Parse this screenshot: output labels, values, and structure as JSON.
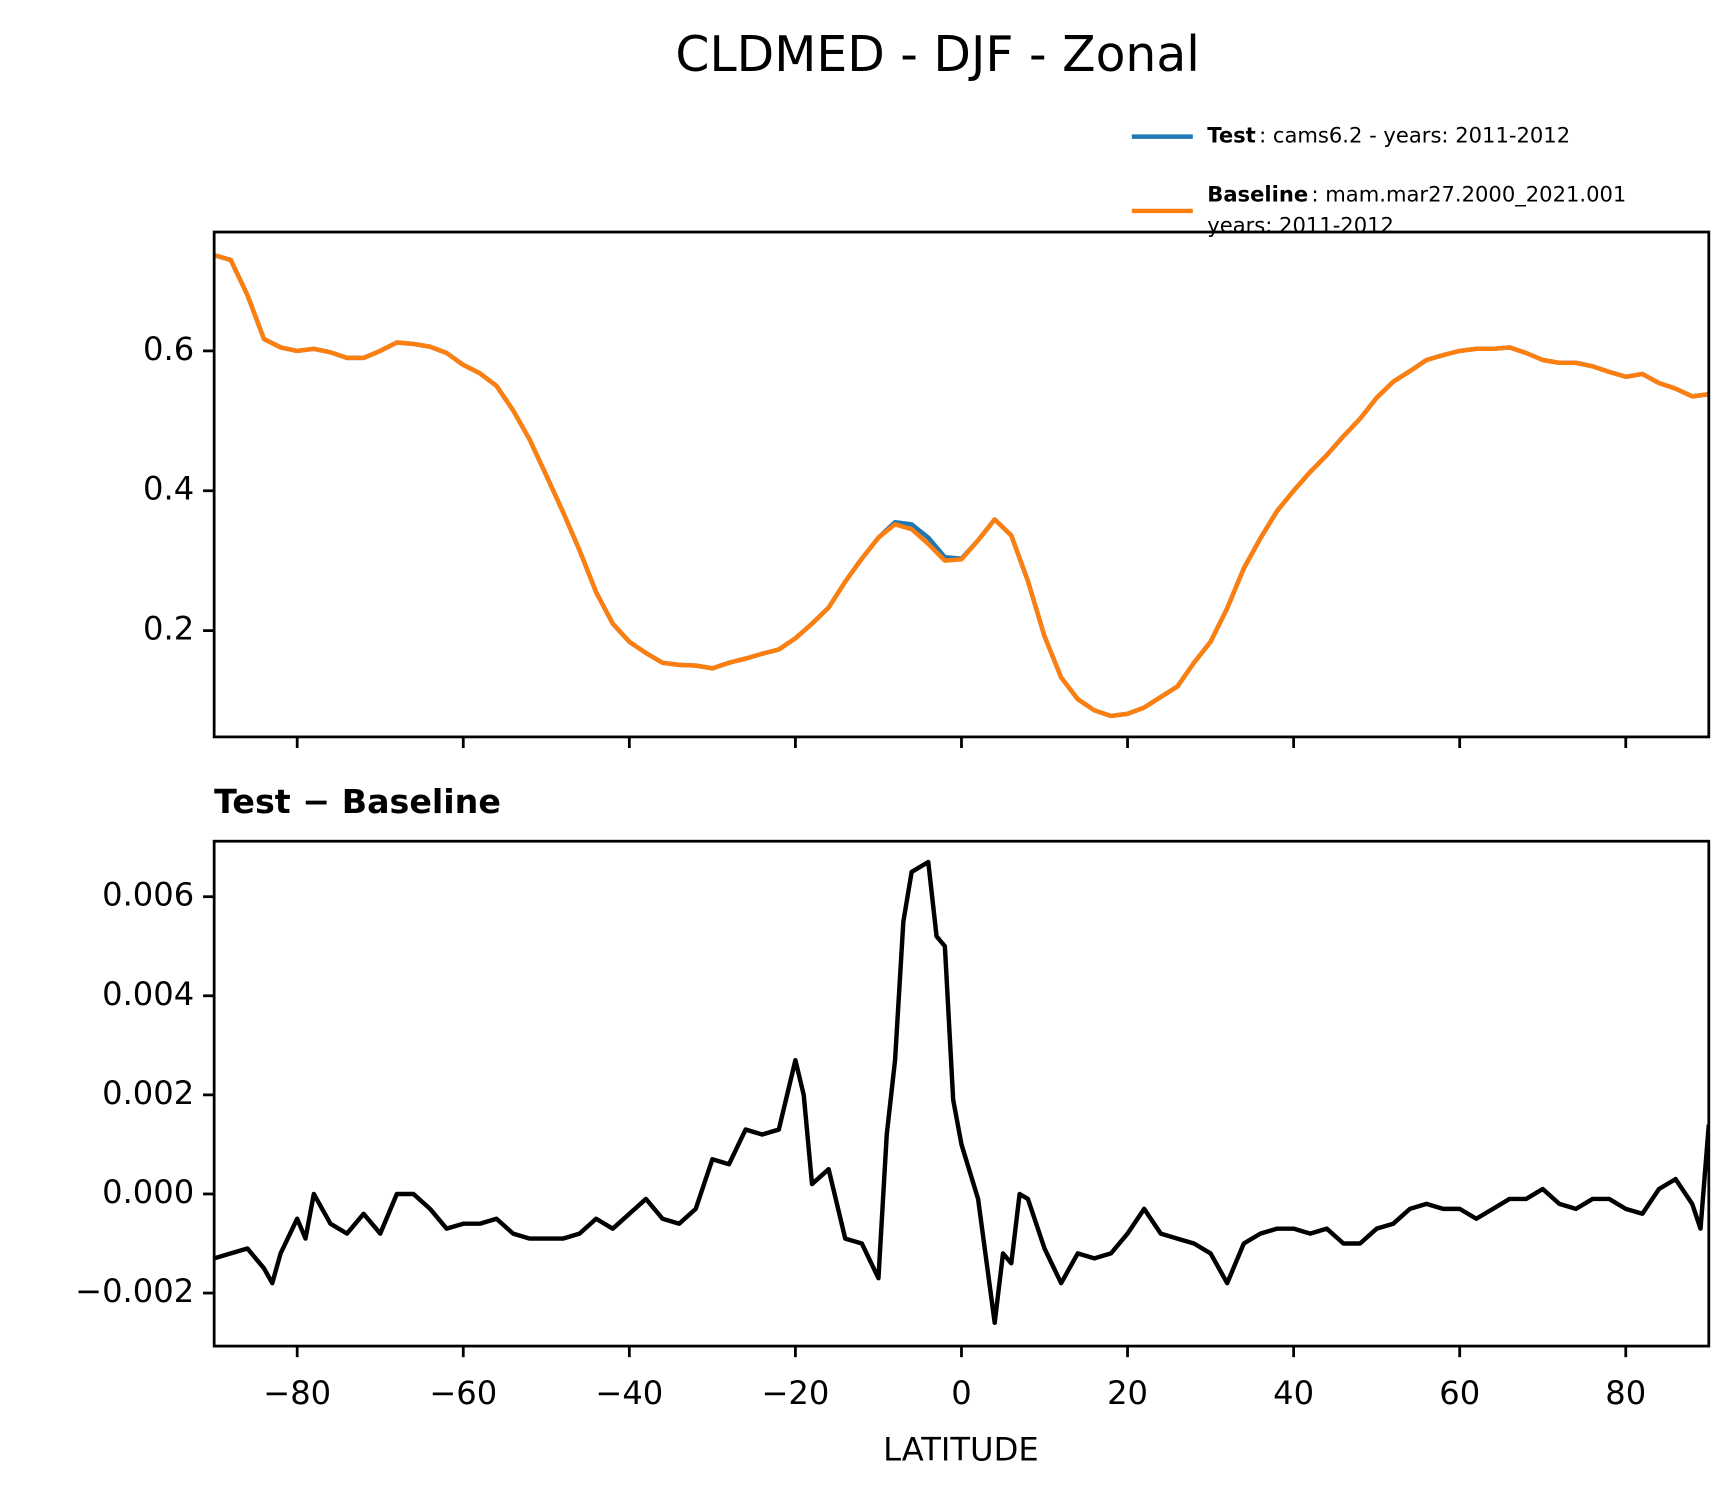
{
  "chart_data": [
    {
      "type": "line",
      "title": "CLDMED - DJF - Zonal",
      "x": [
        -90,
        -88,
        -86,
        -84,
        -82,
        -80,
        -78,
        -76,
        -74,
        -72,
        -70,
        -68,
        -66,
        -64,
        -62,
        -60,
        -58,
        -56,
        -54,
        -52,
        -50,
        -48,
        -46,
        -44,
        -42,
        -40,
        -38,
        -36,
        -34,
        -32,
        -30,
        -28,
        -26,
        -24,
        -22,
        -20,
        -18,
        -16,
        -14,
        -12,
        -10,
        -8,
        -6,
        -4,
        -2,
        0,
        2,
        4,
        6,
        8,
        10,
        12,
        14,
        16,
        18,
        20,
        22,
        24,
        26,
        28,
        30,
        32,
        34,
        36,
        38,
        40,
        42,
        44,
        46,
        48,
        50,
        52,
        54,
        56,
        58,
        60,
        62,
        64,
        66,
        68,
        70,
        72,
        74,
        76,
        78,
        80,
        82,
        84,
        86,
        88,
        90
      ],
      "series": [
        {
          "name": "Test",
          "description": [
            ": cams6.2 - years: 2011-2012"
          ],
          "color": "#1f77b4",
          "values": [
            0.737,
            0.73,
            0.68,
            0.617,
            0.605,
            0.6,
            0.603,
            0.598,
            0.59,
            0.59,
            0.6,
            0.612,
            0.61,
            0.606,
            0.597,
            0.58,
            0.568,
            0.55,
            0.515,
            0.473,
            0.422,
            0.37,
            0.315,
            0.255,
            0.21,
            0.184,
            0.168,
            0.154,
            0.151,
            0.15,
            0.146,
            0.154,
            0.16,
            0.167,
            0.173,
            0.189,
            0.21,
            0.233,
            0.27,
            0.303,
            0.333,
            0.355,
            0.352,
            0.333,
            0.305,
            0.303,
            0.329,
            0.359,
            0.336,
            0.271,
            0.192,
            0.133,
            0.102,
            0.086,
            0.078,
            0.081,
            0.09,
            0.105,
            0.12,
            0.154,
            0.184,
            0.232,
            0.289,
            0.332,
            0.371,
            0.4,
            0.427,
            0.451,
            0.478,
            0.503,
            0.533,
            0.556,
            0.571,
            0.587,
            0.594,
            0.6,
            0.603,
            0.603,
            0.605,
            0.597,
            0.587,
            0.583,
            0.583,
            0.578,
            0.57,
            0.563,
            0.567,
            0.554,
            0.546,
            0.535,
            0.538
          ]
        },
        {
          "name": "Baseline",
          "description": [
            ": mam.mar27.2000_2021.001",
            "years: 2011-2012"
          ],
          "color": "#ff7f0e",
          "values": [
            0.737,
            0.73,
            0.68,
            0.617,
            0.605,
            0.6,
            0.603,
            0.598,
            0.59,
            0.59,
            0.6,
            0.612,
            0.61,
            0.606,
            0.597,
            0.58,
            0.568,
            0.55,
            0.515,
            0.473,
            0.422,
            0.37,
            0.315,
            0.255,
            0.21,
            0.184,
            0.168,
            0.154,
            0.151,
            0.15,
            0.146,
            0.154,
            0.16,
            0.167,
            0.173,
            0.189,
            0.21,
            0.233,
            0.27,
            0.303,
            0.333,
            0.352,
            0.345,
            0.324,
            0.3,
            0.302,
            0.329,
            0.359,
            0.336,
            0.271,
            0.192,
            0.133,
            0.102,
            0.086,
            0.078,
            0.081,
            0.09,
            0.105,
            0.12,
            0.154,
            0.184,
            0.232,
            0.289,
            0.332,
            0.371,
            0.4,
            0.427,
            0.451,
            0.478,
            0.503,
            0.533,
            0.556,
            0.571,
            0.587,
            0.594,
            0.6,
            0.603,
            0.603,
            0.605,
            0.597,
            0.587,
            0.583,
            0.583,
            0.578,
            0.57,
            0.563,
            0.567,
            0.554,
            0.546,
            0.535,
            0.538
          ]
        }
      ],
      "xlim": [
        -90,
        90
      ],
      "xticks": [
        -80,
        -60,
        -40,
        -20,
        0,
        20,
        40,
        60,
        80
      ],
      "ylim": [
        0.048,
        0.77
      ],
      "yticks": [
        0.2,
        0.4,
        0.6
      ],
      "legend": "upper right"
    },
    {
      "type": "line",
      "subtitle": "Test − Baseline",
      "xlabel": "LATITUDE",
      "x": [
        -90,
        -88,
        -86,
        -84,
        -83,
        -82,
        -80,
        -79,
        -78,
        -76,
        -74,
        -72,
        -70,
        -68,
        -66,
        -64,
        -62,
        -60,
        -58,
        -56,
        -54,
        -52,
        -50,
        -48,
        -46,
        -44,
        -42,
        -40,
        -38,
        -36,
        -34,
        -32,
        -30,
        -28,
        -26,
        -24,
        -22,
        -20,
        -19,
        -18,
        -16,
        -14,
        -12,
        -10,
        -9,
        -8,
        -7,
        -6,
        -4,
        -3,
        -2,
        -1,
        0,
        2,
        4,
        5,
        6,
        7,
        8,
        10,
        12,
        14,
        16,
        18,
        20,
        22,
        24,
        26,
        28,
        30,
        32,
        34,
        36,
        38,
        40,
        42,
        44,
        46,
        48,
        50,
        52,
        54,
        56,
        58,
        60,
        62,
        64,
        66,
        68,
        70,
        72,
        74,
        76,
        78,
        80,
        82,
        84,
        86,
        88,
        89,
        90
      ],
      "series": [
        {
          "color": "#000000",
          "values": [
            -0.0013,
            -0.0012,
            -0.0011,
            -0.0015,
            -0.0018,
            -0.0012,
            -0.0005,
            -0.0009,
            0.0,
            -0.0006,
            -0.0008,
            -0.0004,
            -0.0008,
            0.0,
            0.0,
            -0.0003,
            -0.0007,
            -0.0006,
            -0.0006,
            -0.0005,
            -0.0008,
            -0.0009,
            -0.0009,
            -0.0009,
            -0.0008,
            -0.0005,
            -0.0007,
            -0.0004,
            -0.0001,
            -0.0005,
            -0.0006,
            -0.0003,
            0.0007,
            0.0006,
            0.0013,
            0.0012,
            0.0013,
            0.0027,
            0.002,
            0.0002,
            0.0005,
            -0.0009,
            -0.001,
            -0.0017,
            0.0012,
            0.0027,
            0.0055,
            0.0065,
            0.0067,
            0.0052,
            0.005,
            0.0019,
            0.001,
            -0.0001,
            -0.0026,
            -0.0012,
            -0.0014,
            0.0,
            -0.0001,
            -0.0011,
            -0.0018,
            -0.0012,
            -0.0013,
            -0.0012,
            -0.0008,
            -0.0003,
            -0.0008,
            -0.0009,
            -0.001,
            -0.0012,
            -0.0018,
            -0.001,
            -0.0008,
            -0.0007,
            -0.0007,
            -0.0008,
            -0.0007,
            -0.001,
            -0.001,
            -0.0007,
            -0.0006,
            -0.0003,
            -0.0002,
            -0.0003,
            -0.0003,
            -0.0005,
            -0.0003,
            -0.0001,
            -0.0001,
            0.0001,
            -0.0002,
            -0.0003,
            -0.0001,
            -0.0001,
            -0.0003,
            -0.0004,
            0.0001,
            0.0003,
            -0.0002,
            -0.0007,
            0.0014
          ]
        }
      ],
      "xlim": [
        -90,
        90
      ],
      "xticks": [
        {
          "value": -80,
          "label": "−80"
        },
        {
          "value": -60,
          "label": "−60"
        },
        {
          "value": -40,
          "label": "−40"
        },
        {
          "value": -20,
          "label": "−20"
        },
        0,
        20,
        40,
        60,
        80
      ],
      "ylim": [
        -0.00307,
        0.00712
      ],
      "yticks": [
        {
          "value": -0.002,
          "label": "−0.002"
        },
        {
          "value": 0,
          "label": "0.000"
        },
        0.002,
        0.004,
        0.006
      ]
    }
  ]
}
